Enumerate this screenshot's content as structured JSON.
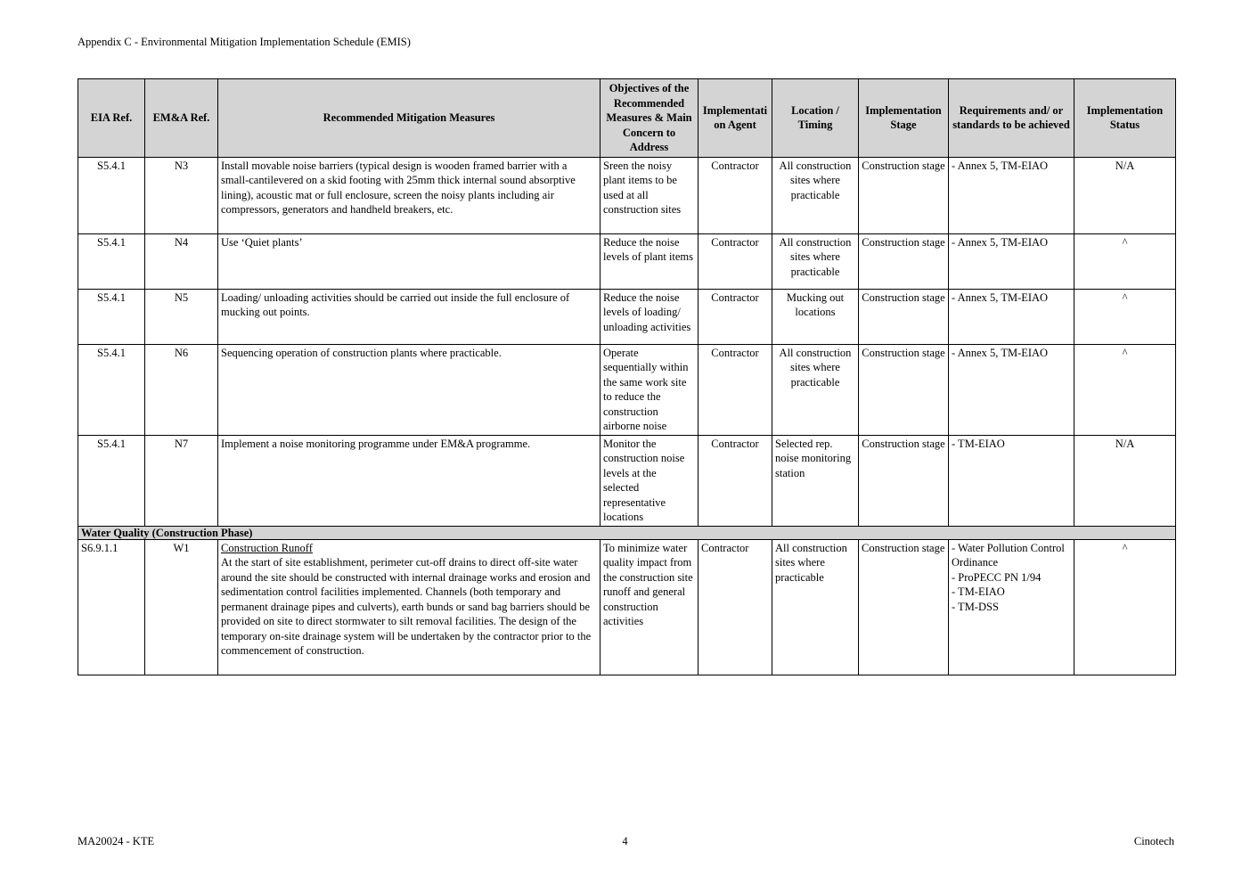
{
  "page_header": "Appendix C - Environmental Mitigation Implementation Schedule (EMIS)",
  "footer": {
    "left": "MA20024 - KTE",
    "page_number": "4",
    "right": "Cinotech"
  },
  "colors": {
    "table_header_bg": "#d4d4d4",
    "border": "#000000"
  },
  "table": {
    "columns": [
      "EIA Ref.",
      "EM&A Ref.",
      "Recommended Mitigation Measures",
      "Objectives of the Recommended Measures & Main Concern to Address",
      "Implementation Agent",
      "Location / Timing",
      "Implementation Stage",
      "Requirements and/ or standards to be achieved",
      "Implementation Status"
    ],
    "rows": [
      {
        "type": "data",
        "align": "center",
        "eia_ref": "S5.4.1",
        "ema_ref": "N3",
        "measure_title": "",
        "measure_text": "Install movable noise barriers (typical design is wooden framed barrier with a small-cantilevered on a skid footing with 25mm thick internal sound absorptive lining), acoustic mat or full enclosure, screen the noisy plants including air compressors, generators and handheld breakers, etc.",
        "objectives": "Sreen the noisy plant items to be used at all construction sites",
        "agent": "Contractor",
        "location": "All construction sites where practicable",
        "stage": "Construction stage",
        "requirements": [
          "- Annex 5, TM-EIAO"
        ],
        "status": "N/A"
      },
      {
        "type": "data",
        "align": "center",
        "eia_ref": "S5.4.1",
        "ema_ref": "N4",
        "measure_title": "",
        "measure_text": "Use ‘Quiet plants’",
        "objectives": "Reduce the noise levels of plant items",
        "agent": "Contractor",
        "location": "All construction sites where practicable",
        "stage": "Construction stage",
        "requirements": [
          "- Annex 5, TM-EIAO"
        ],
        "status": "^"
      },
      {
        "type": "data",
        "align": "center",
        "eia_ref": "S5.4.1",
        "ema_ref": "N5",
        "measure_title": "",
        "measure_text": "Loading/ unloading activities should be carried out inside the full enclosure of mucking out points.",
        "objectives": "Reduce the noise levels of loading/ unloading activities",
        "agent": "Contractor",
        "location": "Mucking out locations",
        "stage": "Construction stage",
        "requirements": [
          "- Annex 5, TM-EIAO"
        ],
        "status": "^"
      },
      {
        "type": "data",
        "align": "center",
        "eia_ref": "S5.4.1",
        "ema_ref": "N6",
        "measure_title": "",
        "measure_text": "Sequencing operation of construction plants where practicable.",
        "objectives": "Operate sequentially within the same work site to reduce the construction airborne noise",
        "agent": "Contractor",
        "location": "All construction sites where practicable",
        "stage": "Construction stage",
        "requirements": [
          "- Annex 5, TM-EIAO"
        ],
        "status": "^"
      },
      {
        "type": "data",
        "align": "center",
        "location_align": "left",
        "eia_ref": "S5.4.1",
        "ema_ref": "N7",
        "measure_title": "",
        "measure_text": "Implement a noise monitoring programme under EM&A programme.",
        "objectives": "Monitor the construction noise levels at the selected representative locations",
        "agent": "Contractor",
        "location": "Selected rep. noise monitoring station",
        "stage": "Construction stage",
        "requirements": [
          "- TM-EIAO"
        ],
        "status": "N/A"
      },
      {
        "type": "section",
        "label": "Water Quality (Construction Phase)"
      },
      {
        "type": "data",
        "align": "left",
        "eia_ref": "S6.9.1.1",
        "ema_ref": "W1",
        "measure_title": "Construction Runoff",
        "measure_text": "At the start of site establishment, perimeter cut-off drains to direct off-site water around the site should be constructed with internal drainage works and erosion and sedimentation control facilities implemented.  Channels (both temporary and permanent drainage pipes and culverts), earth bunds or sand bag barriers should be provided on site to direct stormwater to silt removal facilities.  The design of the temporary on-site drainage system will be undertaken by the contractor prior to the commencement of construction.",
        "objectives": "To minimize water quality impact from the construction site runoff and general construction activities",
        "agent": "Contractor",
        "location": "All construction sites where practicable",
        "stage": "Construction stage",
        "requirements": [
          "- Water Pollution Control Ordinance",
          "- ProPECC PN 1/94",
          "- TM-EIAO",
          "- TM-DSS"
        ],
        "status": "^"
      }
    ]
  }
}
